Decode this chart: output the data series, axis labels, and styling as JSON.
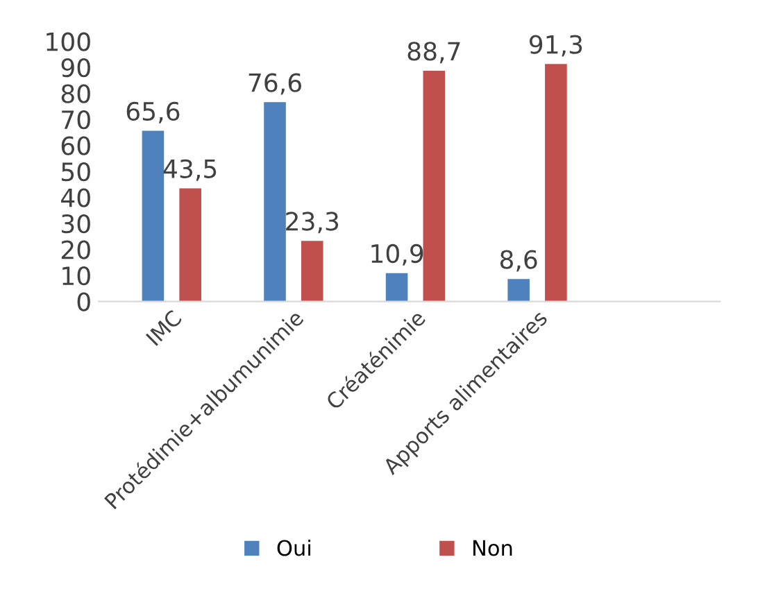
{
  "chart_data": {
    "type": "bar",
    "categories": [
      "IMC",
      "Protédimie+albumunimie",
      "Créaténimie",
      "Apports alimentaires"
    ],
    "series": [
      {
        "name": "Oui",
        "color": "#4f81bd",
        "values": [
          65.6,
          76.6,
          10.9,
          8.6
        ],
        "value_labels": [
          "65,6",
          "76,6",
          "10,9",
          "8,6"
        ]
      },
      {
        "name": "Non",
        "color": "#c0504d",
        "values": [
          43.5,
          23.3,
          88.7,
          91.3
        ],
        "value_labels": [
          "43,5",
          "23,3",
          "88,7",
          "91,3"
        ]
      }
    ],
    "ylim": [
      0,
      100
    ],
    "yticks": [
      0,
      10,
      20,
      30,
      40,
      50,
      60,
      70,
      80,
      90,
      100
    ],
    "grid": false,
    "legend": "bottom"
  }
}
